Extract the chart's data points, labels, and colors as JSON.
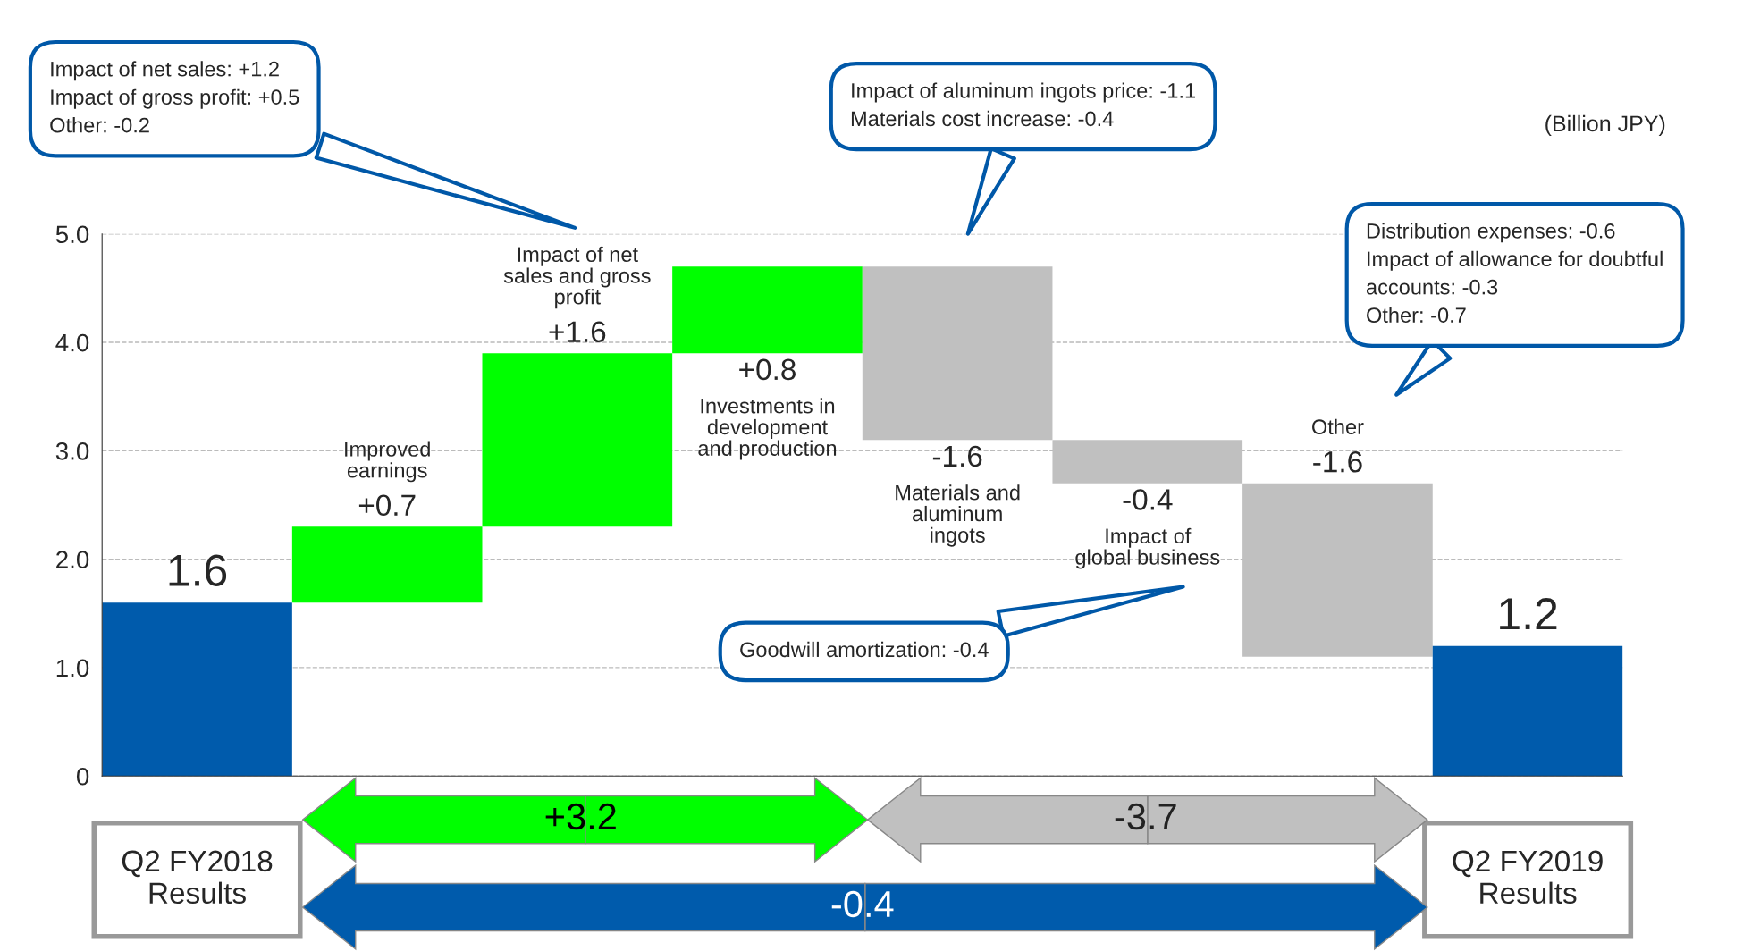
{
  "chart_data": {
    "type": "bar",
    "categories": [
      "Q2 FY2018\nResults",
      "Improved\nearnings",
      "Impact of net\nsales and gross\nprofit",
      "Investments in\ndevelopment\nand production",
      "Materials and\naluminum\ningots",
      "Impact of\nglobal business",
      "Other",
      "Q2 FY2019\nResults"
    ],
    "values": [
      1.6,
      0.7,
      1.6,
      0.8,
      -1.6,
      -0.4,
      -1.6,
      1.2
    ],
    "base": [
      0,
      1.6,
      2.3,
      3.9,
      4.7,
      3.1,
      2.7,
      0
    ],
    "colors": [
      "#005bac",
      "#00ff00",
      "#00ff00",
      "#00ff00",
      "#c0c0c0",
      "#c0c0c0",
      "#c0c0c0",
      "#005bac"
    ],
    "value_labels": [
      "1.6",
      "+0.7",
      "+1.6",
      "+0.8",
      "-1.6",
      "-0.4",
      "-1.6",
      "1.2"
    ],
    "ylim": [
      0,
      5
    ],
    "yticks": [
      0,
      {
        "value": 1,
        "label": "1.0"
      },
      {
        "value": 2,
        "label": "2.0"
      },
      {
        "value": 3,
        "label": "3.0"
      },
      {
        "value": 4,
        "label": "4.0"
      },
      {
        "value": 5,
        "label": "5.0"
      }
    ],
    "grid": "y",
    "legend": false,
    "annotations": [
      "Impact of net sales: +1.2\nImpact of gross profit: +0.5\nOther: -0.2",
      "Impact of aluminum ingots price: -1.1\nMaterials cost increase: -0.4",
      "(Billion JPY)",
      "Distribution expenses: -0.6\nImpact of allowance for doubtful\naccounts: -0.3\nOther: -0.7",
      "Goodwill amortization: -0.4",
      "+3.2",
      "-3.7",
      "-0.4"
    ]
  }
}
